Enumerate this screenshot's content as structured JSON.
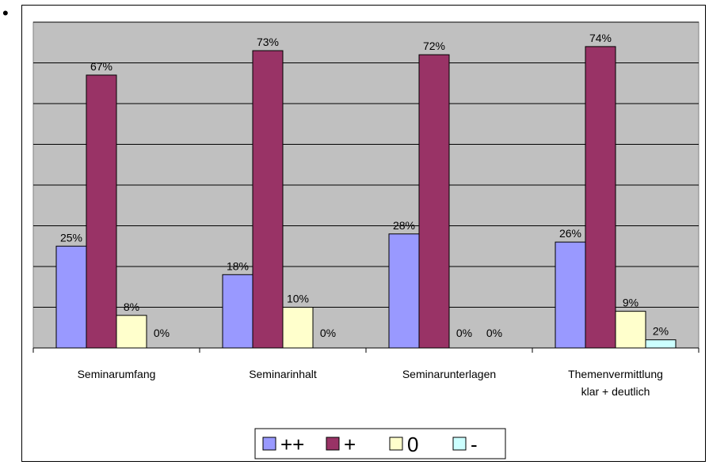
{
  "bullet": "•",
  "chart_data": {
    "type": "bar",
    "categories": [
      [
        "Seminarumfang"
      ],
      [
        "Seminarinhalt"
      ],
      [
        "Seminarunterlagen"
      ],
      [
        "Themenvermittlung",
        "klar + deutlich"
      ]
    ],
    "series": [
      {
        "name": "++",
        "values": [
          25,
          18,
          28,
          26
        ],
        "labels": [
          "25%",
          "18%",
          "28%",
          "26%"
        ]
      },
      {
        "name": "+",
        "values": [
          67,
          73,
          72,
          74
        ],
        "labels": [
          "67%",
          "73%",
          "72%",
          "74%"
        ]
      },
      {
        "name": "0",
        "values": [
          8,
          10,
          0,
          9
        ],
        "labels": [
          "8%",
          "10%",
          "0%",
          "9%"
        ]
      },
      {
        "name": "-",
        "values": [
          0,
          0,
          0,
          2
        ],
        "labels": [
          "0%",
          "0%",
          "0%",
          "2%"
        ]
      }
    ],
    "ylim": [
      0,
      80
    ],
    "grid": true,
    "legend_position": "bottom",
    "colors": {
      "plot_background": "#c0c0c0",
      "series": [
        "#9999ff",
        "#993366",
        "#ffffcc",
        "#ccffff"
      ],
      "gridline": "#000000"
    }
  }
}
